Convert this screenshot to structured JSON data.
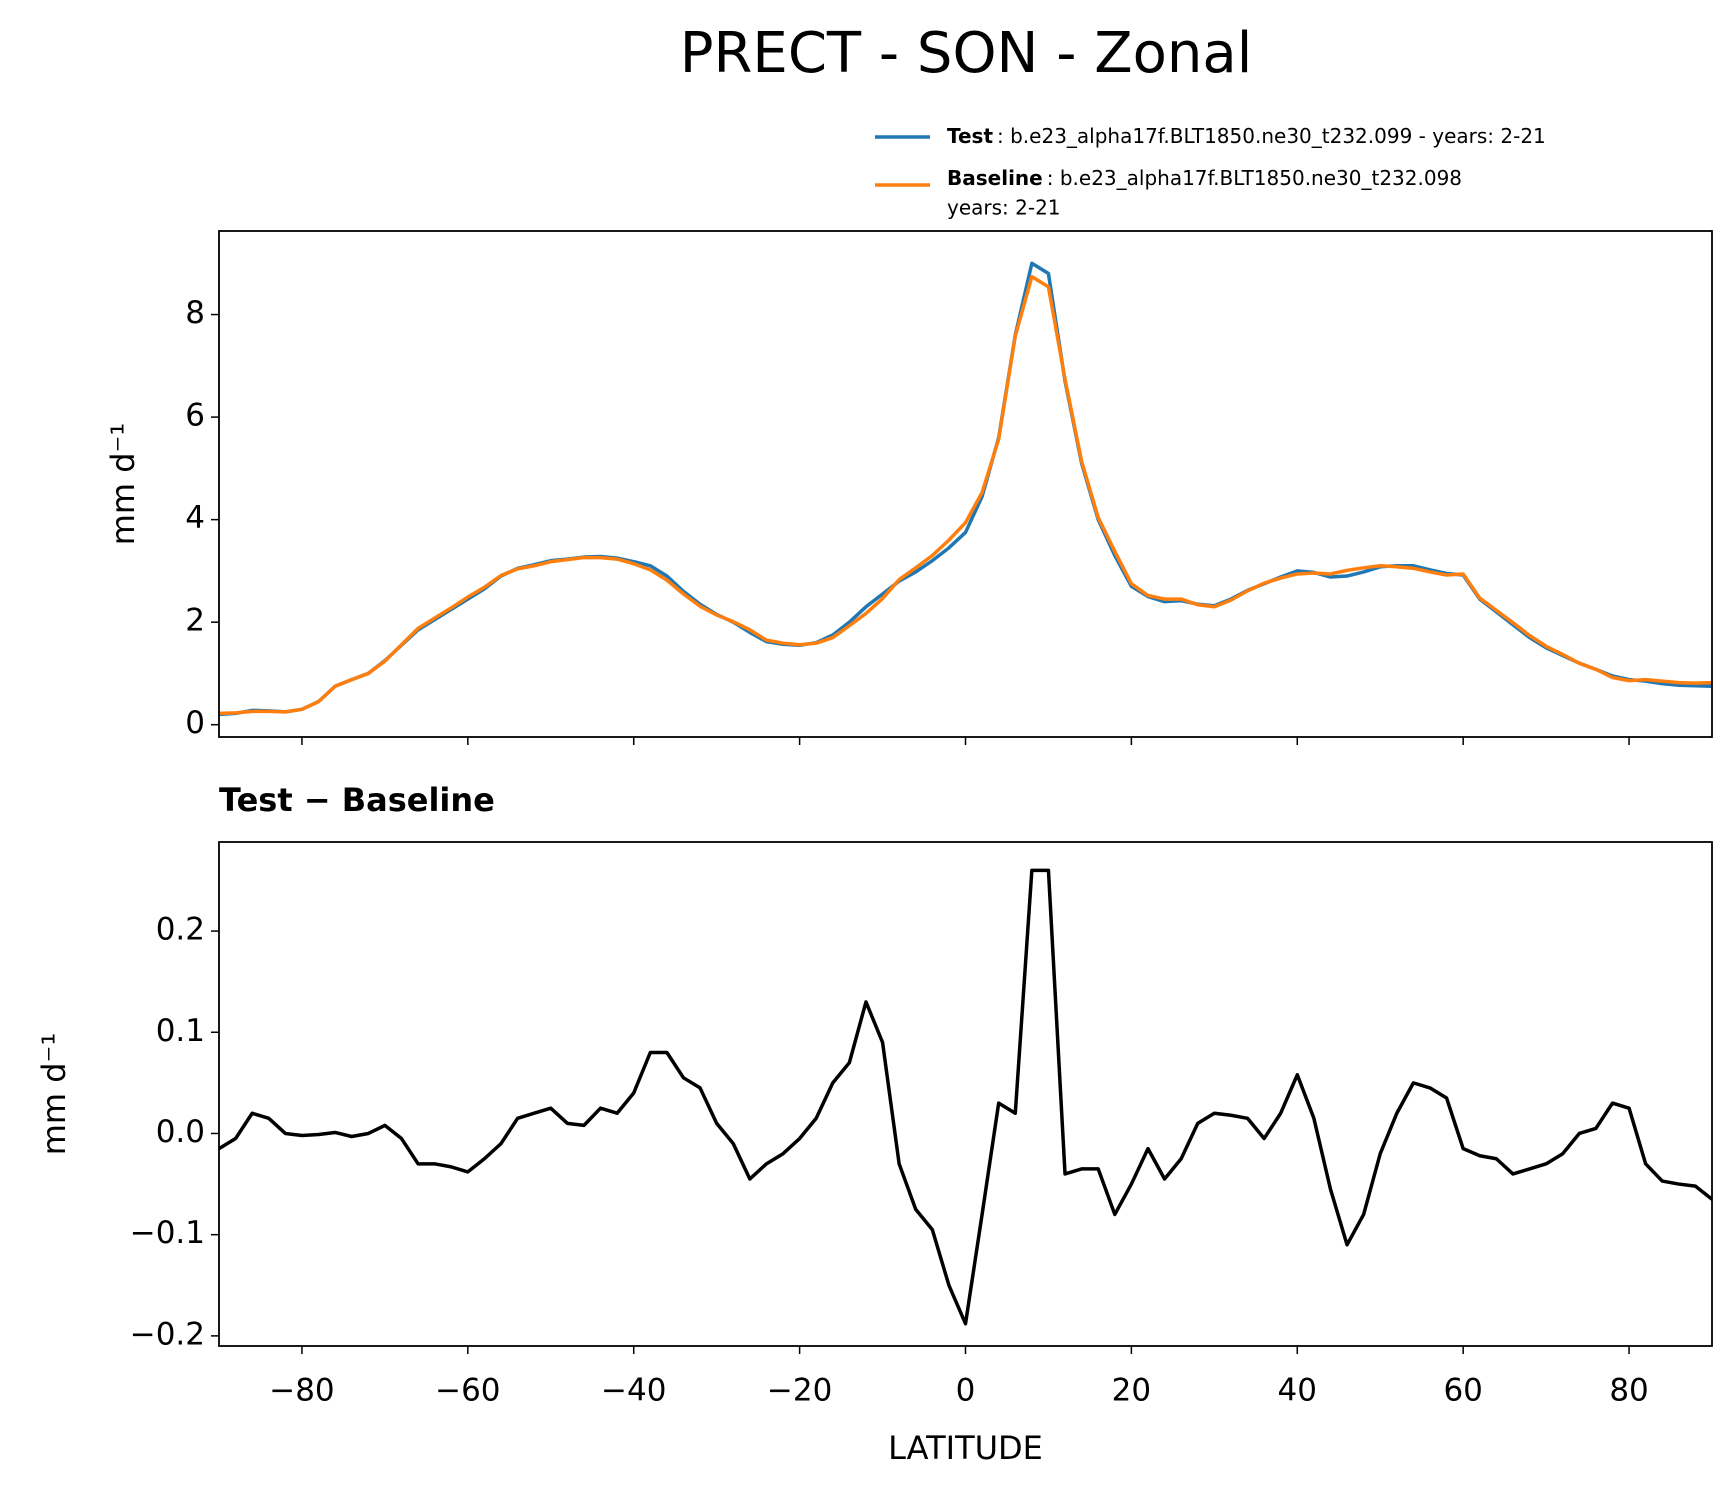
{
  "title": "PRECT - SON - Zonal",
  "chart_data": [
    {
      "type": "line",
      "ylabel": "mm d⁻¹",
      "x": [
        -90,
        -88,
        -86,
        -84,
        -82,
        -80,
        -78,
        -76,
        -74,
        -72,
        -70,
        -68,
        -66,
        -64,
        -62,
        -60,
        -58,
        -56,
        -54,
        -52,
        -50,
        -48,
        -46,
        -44,
        -42,
        -40,
        -38,
        -36,
        -34,
        -32,
        -30,
        -28,
        -26,
        -24,
        -22,
        -20,
        -18,
        -16,
        -14,
        -12,
        -10,
        -8,
        -6,
        -4,
        -2,
        0,
        2,
        4,
        6,
        8,
        10,
        12,
        14,
        16,
        18,
        20,
        22,
        24,
        26,
        28,
        30,
        32,
        34,
        36,
        38,
        40,
        42,
        44,
        46,
        48,
        50,
        52,
        54,
        56,
        58,
        60,
        62,
        64,
        66,
        68,
        70,
        72,
        74,
        76,
        78,
        80,
        82,
        84,
        86,
        88,
        90
      ],
      "series": [
        {
          "name": "Test",
          "label": [
            ": b.e23_alpha17f.BLT1850.ne30_t232.099 - years: 2-21"
          ],
          "color": "#1f77b4",
          "values": [
            0.2,
            0.22,
            0.28,
            0.27,
            0.25,
            0.3,
            0.45,
            0.75,
            0.88,
            1.0,
            1.25,
            1.55,
            1.85,
            2.05,
            2.25,
            2.45,
            2.65,
            2.9,
            3.05,
            3.12,
            3.2,
            3.23,
            3.27,
            3.28,
            3.25,
            3.18,
            3.1,
            2.9,
            2.6,
            2.35,
            2.15,
            2.0,
            1.8,
            1.62,
            1.57,
            1.55,
            1.6,
            1.75,
            2.0,
            2.3,
            2.55,
            2.8,
            2.98,
            3.2,
            3.45,
            3.75,
            4.45,
            5.6,
            7.6,
            9.0,
            8.8,
            6.7,
            5.1,
            4.0,
            3.3,
            2.7,
            2.5,
            2.4,
            2.42,
            2.35,
            2.32,
            2.45,
            2.62,
            2.75,
            2.88,
            3.0,
            2.97,
            2.88,
            2.9,
            2.98,
            3.08,
            3.1,
            3.1,
            3.02,
            2.95,
            2.92,
            2.45,
            2.2,
            1.95,
            1.7,
            1.5,
            1.35,
            1.2,
            1.08,
            0.95,
            0.88,
            0.85,
            0.8,
            0.77,
            0.76,
            0.75
          ]
        },
        {
          "name": "Baseline",
          "label": [
            ": b.e23_alpha17f.BLT1850.ne30_t232.098",
            "years: 2-21"
          ],
          "color": "#ff7f0e",
          "values": [
            0.22,
            0.23,
            0.26,
            0.26,
            0.25,
            0.3,
            0.45,
            0.75,
            0.88,
            1.0,
            1.24,
            1.56,
            1.88,
            2.08,
            2.28,
            2.49,
            2.68,
            2.91,
            3.04,
            3.1,
            3.18,
            3.22,
            3.26,
            3.26,
            3.23,
            3.14,
            3.02,
            2.82,
            2.55,
            2.31,
            2.14,
            2.01,
            1.85,
            1.65,
            1.59,
            1.56,
            1.59,
            1.7,
            1.93,
            2.17,
            2.46,
            2.83,
            3.06,
            3.3,
            3.6,
            3.94,
            4.53,
            5.57,
            7.58,
            8.74,
            8.54,
            6.74,
            5.14,
            4.04,
            3.38,
            2.75,
            2.52,
            2.45,
            2.45,
            2.34,
            2.3,
            2.43,
            2.61,
            2.76,
            2.86,
            2.94,
            2.96,
            2.94,
            3.01,
            3.06,
            3.1,
            3.08,
            3.05,
            2.98,
            2.92,
            2.94,
            2.47,
            2.23,
            1.99,
            1.74,
            1.53,
            1.37,
            1.2,
            1.08,
            0.92,
            0.86,
            0.88,
            0.85,
            0.82,
            0.81,
            0.82
          ]
        }
      ],
      "xlim": [
        -90,
        90
      ],
      "xticks": [
        -80,
        -60,
        -40,
        -20,
        0,
        20,
        40,
        60,
        80
      ],
      "ylim": [
        -0.24,
        9.63
      ],
      "yticks": [
        0,
        2,
        4,
        6,
        8
      ]
    },
    {
      "type": "line",
      "title": "Test − Baseline",
      "ylabel": "mm d⁻¹",
      "xlabel": "LATITUDE",
      "x": [
        -90,
        -88,
        -86,
        -84,
        -82,
        -80,
        -78,
        -76,
        -74,
        -72,
        -70,
        -68,
        -66,
        -64,
        -62,
        -60,
        -58,
        -56,
        -54,
        -52,
        -50,
        -48,
        -46,
        -44,
        -42,
        -40,
        -38,
        -36,
        -34,
        -32,
        -30,
        -28,
        -26,
        -24,
        -22,
        -20,
        -18,
        -16,
        -14,
        -12,
        -10,
        -8,
        -6,
        -4,
        -2,
        0,
        2,
        4,
        6,
        8,
        10,
        12,
        14,
        16,
        18,
        20,
        22,
        24,
        26,
        28,
        30,
        32,
        34,
        36,
        38,
        40,
        42,
        44,
        46,
        48,
        50,
        52,
        54,
        56,
        58,
        60,
        62,
        64,
        66,
        68,
        70,
        72,
        74,
        76,
        78,
        80,
        82,
        84,
        86,
        88,
        90
      ],
      "color": "#000000",
      "values": [
        -0.015,
        -0.005,
        0.02,
        0.015,
        0.0,
        -0.002,
        -0.001,
        0.001,
        -0.003,
        0.0,
        0.008,
        -0.005,
        -0.03,
        -0.03,
        -0.033,
        -0.038,
        -0.025,
        -0.01,
        0.015,
        0.02,
        0.025,
        0.01,
        0.008,
        0.025,
        0.02,
        0.04,
        0.08,
        0.08,
        0.055,
        0.045,
        0.01,
        -0.01,
        -0.045,
        -0.03,
        -0.02,
        -0.005,
        0.015,
        0.05,
        0.07,
        0.13,
        0.09,
        -0.03,
        -0.075,
        -0.095,
        -0.15,
        -0.188,
        -0.08,
        0.03,
        0.02,
        0.26,
        0.26,
        -0.04,
        -0.035,
        -0.035,
        -0.08,
        -0.05,
        -0.015,
        -0.045,
        -0.025,
        0.01,
        0.02,
        0.018,
        0.015,
        -0.005,
        0.02,
        0.058,
        0.015,
        -0.055,
        -0.11,
        -0.08,
        -0.02,
        0.02,
        0.05,
        0.045,
        0.035,
        -0.015,
        -0.022,
        -0.025,
        -0.04,
        -0.035,
        -0.03,
        -0.02,
        0.0,
        0.005,
        0.03,
        0.025,
        -0.03,
        -0.047,
        -0.05,
        -0.052,
        -0.065
      ],
      "xlim": [
        -90,
        90
      ],
      "xticks": [
        {
          "value": -80,
          "label": "−80"
        },
        {
          "value": -60,
          "label": "−60"
        },
        {
          "value": -40,
          "label": "−40"
        },
        {
          "value": -20,
          "label": "−20"
        },
        0,
        20,
        40,
        60,
        80
      ],
      "ylim": [
        -0.21,
        0.288
      ],
      "yticks": [
        {
          "value": -0.2,
          "label": "−0.2"
        },
        {
          "value": -0.1,
          "label": "−0.1"
        },
        {
          "value": 0,
          "label": "0.0"
        },
        0.1,
        0.2
      ]
    }
  ]
}
